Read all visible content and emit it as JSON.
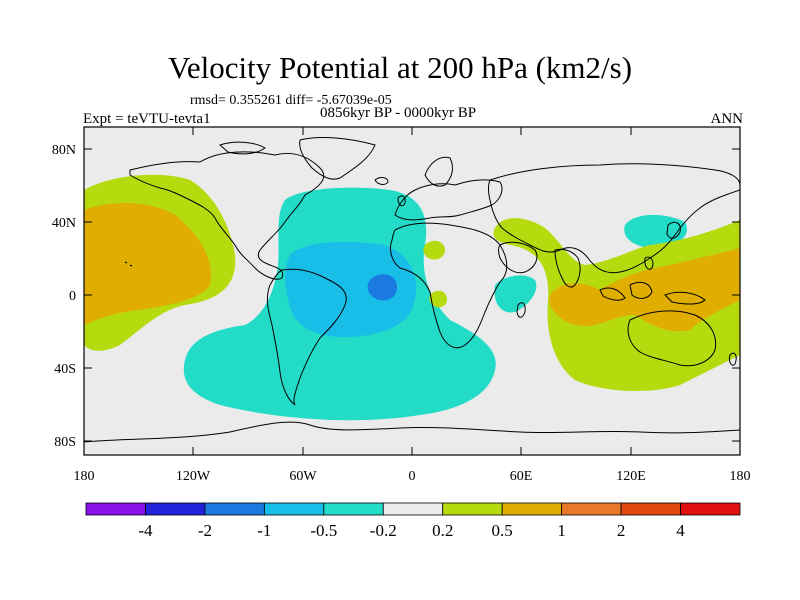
{
  "header": {
    "title": "Velocity Potential at 200 hPa (km2/s)",
    "stats": "rmsd= 0.355261  diff= -5.67039e-05",
    "period": "0856kyr BP - 0000kyr BP",
    "experiment": "Expt = teVTU-tevta1",
    "season": "ANN"
  },
  "map": {
    "projection": "cylindrical-equidistant",
    "lon_range": [
      -180,
      180
    ],
    "lat_range": [
      -90,
      90
    ],
    "background_color": "#ebebeb",
    "lat_ticks": [
      "80N",
      "40N",
      "0",
      "40S",
      "80S"
    ],
    "lon_ticks": [
      "180",
      "120W",
      "60W",
      "0",
      "60E",
      "120E",
      "180"
    ]
  },
  "colorbar": {
    "labels": [
      "-4",
      "-2",
      "-1",
      "-0.5",
      "-0.2",
      "0.2",
      "0.5",
      "1",
      "2",
      "4"
    ],
    "colors": [
      "#8a10e8",
      "#2222dd",
      "#1a7ae0",
      "#18bde8",
      "#22dcc8",
      "#ebebeb",
      "#b5db0e",
      "#e0ae00",
      "#e8782a",
      "#e04810",
      "#e01010"
    ]
  },
  "chart_data": {
    "type": "heatmap",
    "title": "Velocity Potential at 200 hPa (km2/s)",
    "units": "km2/s",
    "levels": [
      -4,
      -2,
      -1,
      -0.5,
      -0.2,
      0.2,
      0.5,
      1,
      2,
      4
    ],
    "regions": [
      {
        "name": "central-atlantic-south-america",
        "sign": "negative",
        "level_range": [
          -0.5,
          -0.2
        ],
        "lon_range": [
          -95,
          5
        ],
        "lat_range": [
          -70,
          55
        ]
      },
      {
        "name": "gulf-of-guinea-minimum",
        "sign": "negative",
        "level_range": [
          -2,
          -1
        ],
        "lon_range": [
          -25,
          -10
        ],
        "lat_range": [
          -8,
          5
        ]
      },
      {
        "name": "atlantic-core",
        "sign": "negative",
        "level_range": [
          -1,
          -0.5
        ],
        "lon_range": [
          -75,
          -5
        ],
        "lat_range": [
          -25,
          20
        ]
      },
      {
        "name": "north-pacific",
        "sign": "positive",
        "level_range": [
          0.5,
          1
        ],
        "lon_range": [
          -180,
          -120
        ],
        "lat_range": [
          -30,
          45
        ]
      },
      {
        "name": "maritime-continent",
        "sign": "positive",
        "level_range": [
          0.5,
          1
        ],
        "lon_range": [
          80,
          180
        ],
        "lat_range": [
          -20,
          15
        ]
      },
      {
        "name": "southern-indian-ocean",
        "sign": "positive",
        "level_range": [
          0.2,
          0.5
        ],
        "lon_range": [
          80,
          180
        ],
        "lat_range": [
          -50,
          35
        ]
      },
      {
        "name": "east-asia-negative",
        "sign": "negative",
        "level_range": [
          -0.5,
          -0.2
        ],
        "lon_range": [
          120,
          160
        ],
        "lat_range": [
          25,
          45
        ]
      },
      {
        "name": "madagascar-negative",
        "sign": "negative",
        "level_range": [
          -0.5,
          -0.2
        ],
        "lon_range": [
          45,
          65
        ],
        "lat_range": [
          -15,
          5
        ]
      }
    ]
  }
}
